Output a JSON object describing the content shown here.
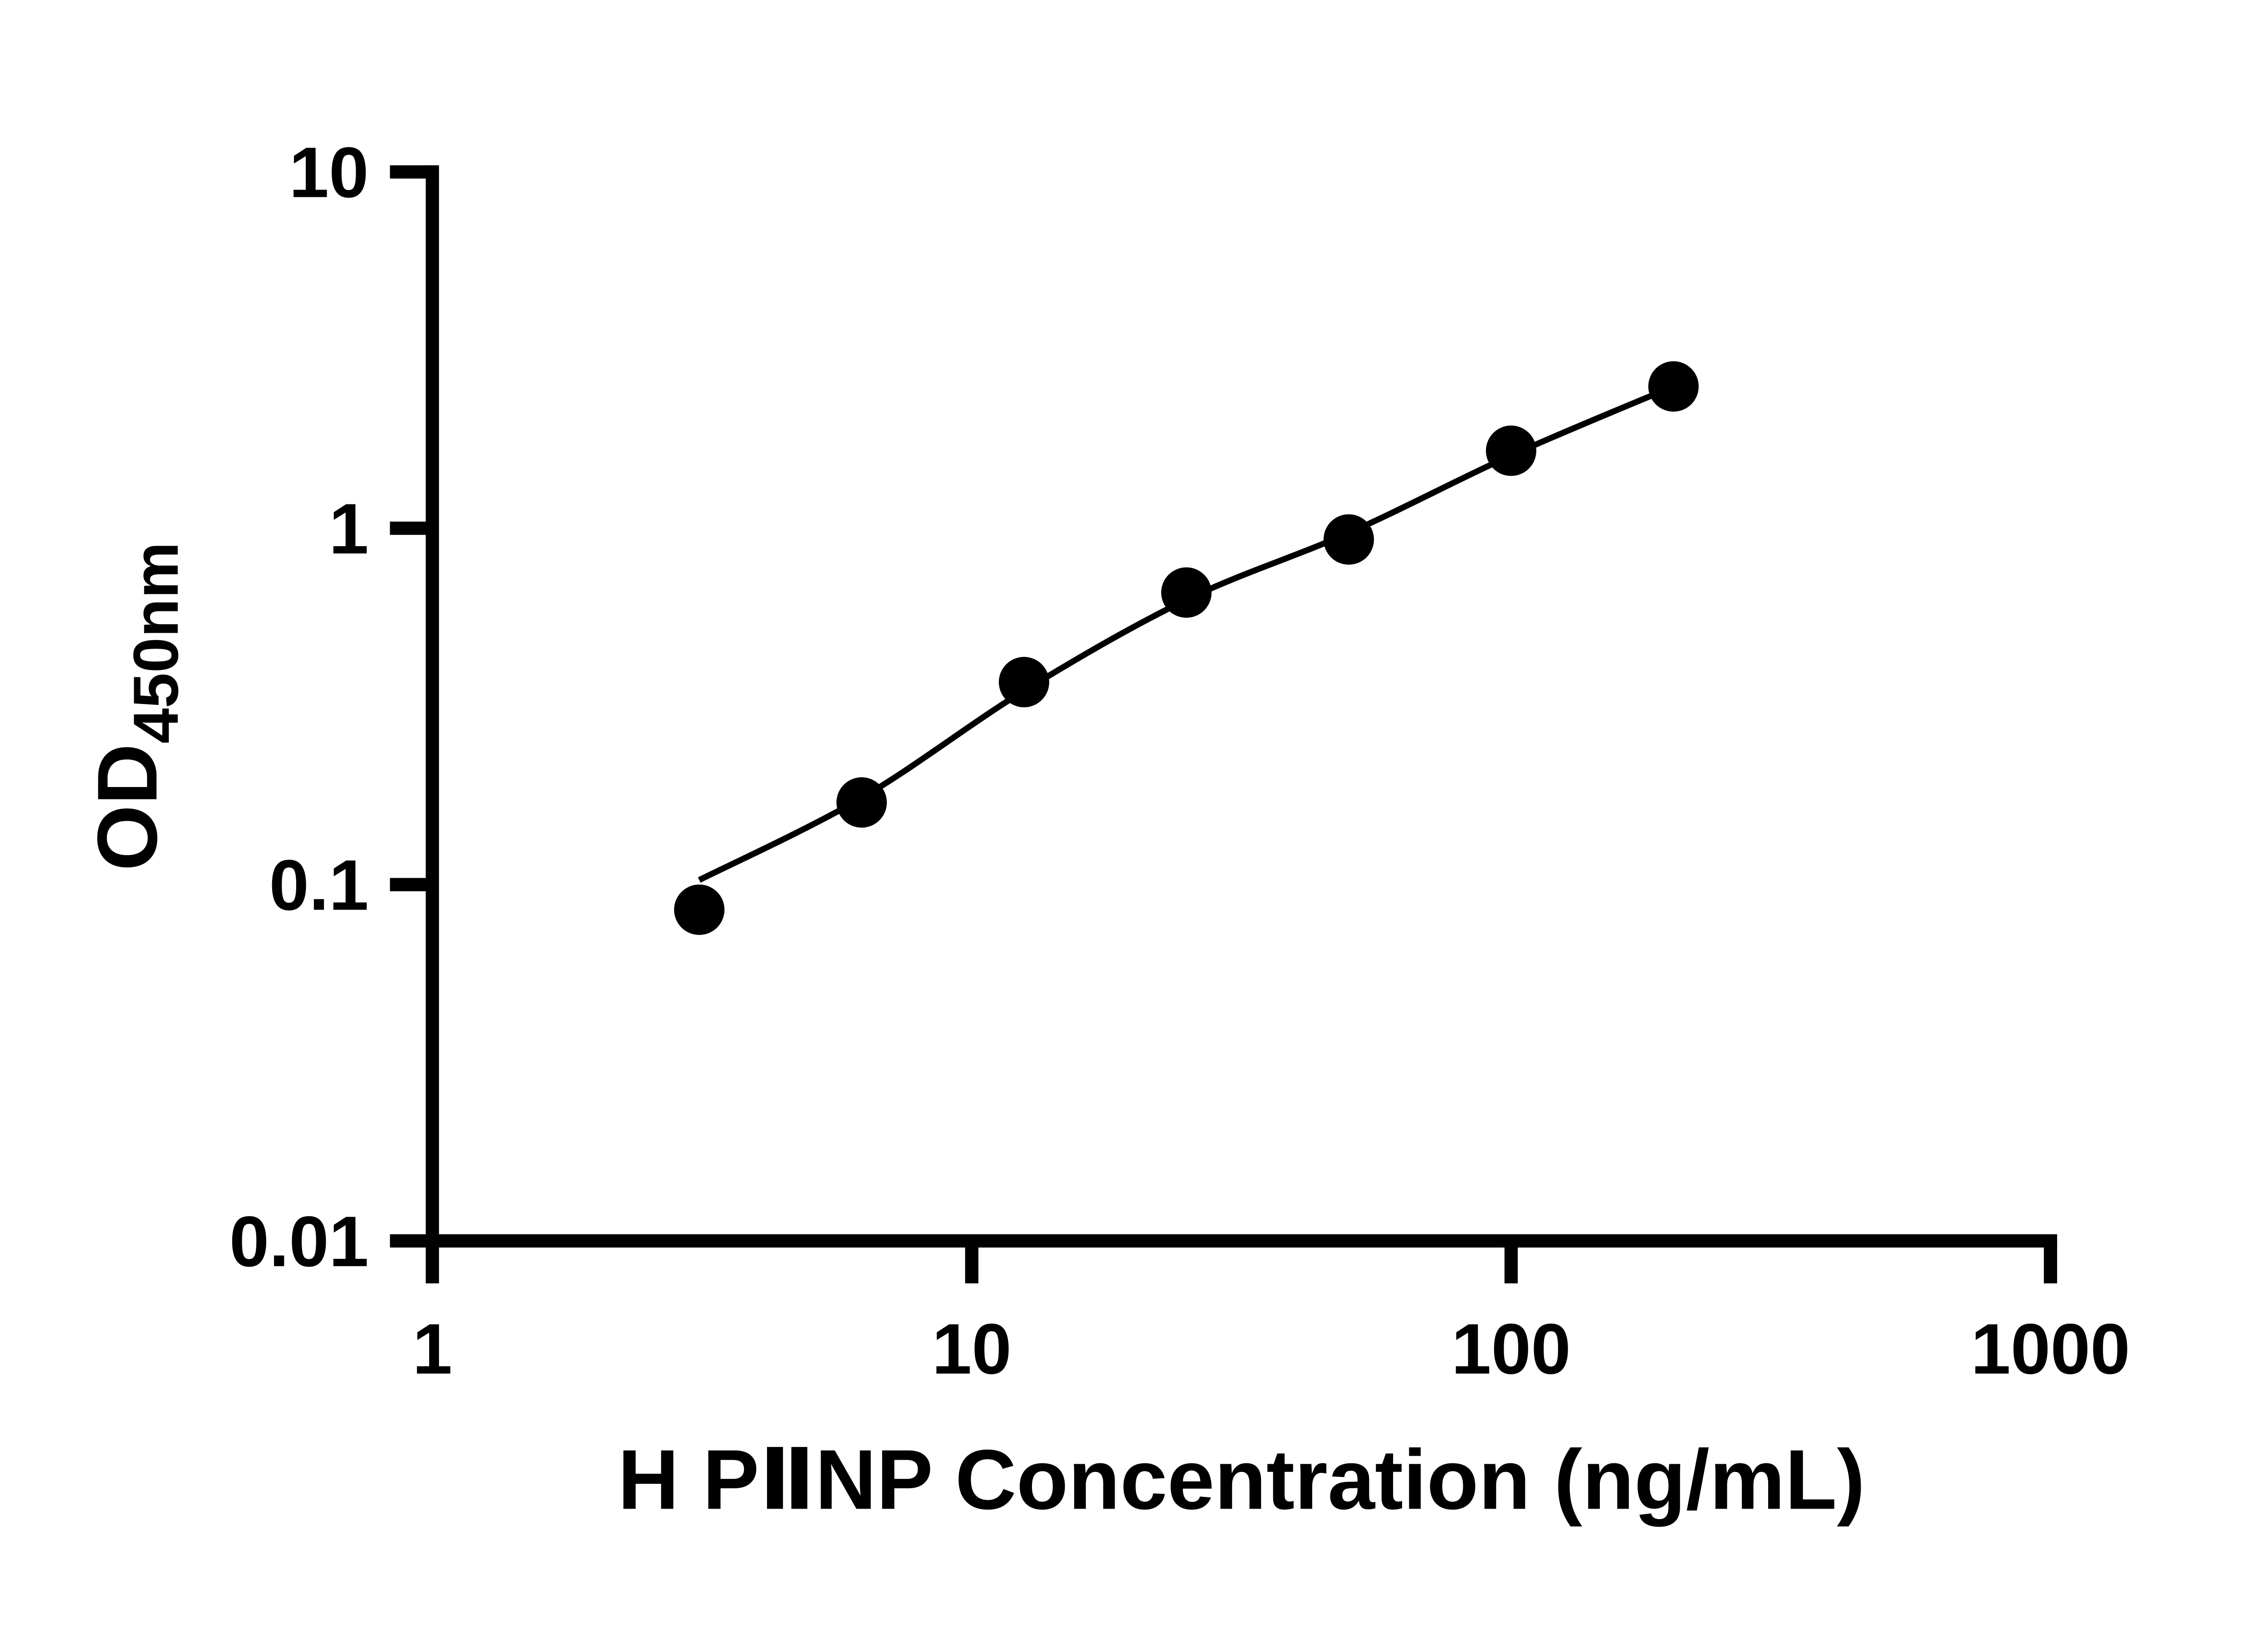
{
  "chart_data": {
    "type": "scatter",
    "title": "",
    "xlabel": "H PⅡNP Concentration (ng/mL)",
    "ylabel": {
      "main": "OD",
      "sub": "450nm"
    },
    "x_scale": "log",
    "y_scale": "log",
    "xlim": [
      1,
      1000
    ],
    "ylim": [
      0.01,
      10
    ],
    "grid": false,
    "legend": null,
    "x_ticks": [
      {
        "value": 1,
        "label": "1"
      },
      {
        "value": 10,
        "label": "10"
      },
      {
        "value": 100,
        "label": "100"
      },
      {
        "value": 1000,
        "label": "1000"
      }
    ],
    "y_ticks": [
      {
        "value": 10,
        "label": "10"
      },
      {
        "value": 1,
        "label": "1"
      },
      {
        "value": 0.1,
        "label": "0.1"
      },
      {
        "value": 0.01,
        "label": "0.01"
      }
    ],
    "points": [
      {
        "x": 3.125,
        "y": 0.085
      },
      {
        "x": 6.25,
        "y": 0.17
      },
      {
        "x": 12.5,
        "y": 0.37
      },
      {
        "x": 25,
        "y": 0.66
      },
      {
        "x": 50,
        "y": 0.93
      },
      {
        "x": 100,
        "y": 1.65
      },
      {
        "x": 200,
        "y": 2.5
      }
    ],
    "fit_curve": [
      {
        "x": 3.125,
        "y": 0.103
      },
      {
        "x": 6.25,
        "y": 0.175
      },
      {
        "x": 12.5,
        "y": 0.35
      },
      {
        "x": 25,
        "y": 0.63
      },
      {
        "x": 50,
        "y": 0.97
      },
      {
        "x": 100,
        "y": 1.6
      },
      {
        "x": 200,
        "y": 2.5
      }
    ],
    "colors": {
      "axis": "#000000",
      "points": "#000000",
      "curve": "#000000",
      "text": "#000000",
      "background": "#ffffff"
    },
    "point_radius": 19
  }
}
